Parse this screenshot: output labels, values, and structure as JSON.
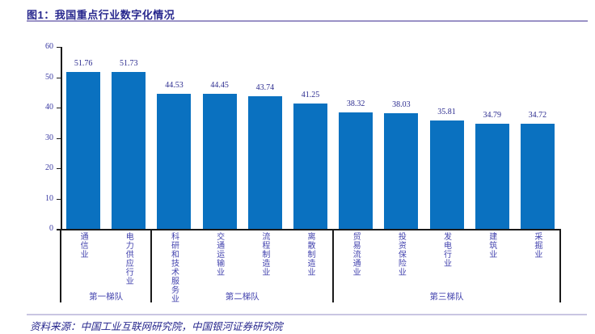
{
  "title": "图1：我国重点行业数字化情况",
  "source_note": "资料来源：中国工业互联网研究院，中国银河证券研究院",
  "colors": {
    "bar": "#0A71C0",
    "title_text": "#28288E",
    "y_tick_label": "#3838A2",
    "value_label": "#2B2B8F",
    "category_label": "#4343AE",
    "axis_line": "#1a1a1a",
    "title_rule": "#9A92C6",
    "source_rule": "#C9C6E2"
  },
  "chart_data": {
    "type": "bar",
    "title": "我国重点行业数字化情况",
    "categories": [
      "通信业",
      "电力供应行业",
      "科研和技术服务业",
      "交通运输业",
      "流程制造业",
      "离散制造业",
      "贸易流通业",
      "投资保险业",
      "发电行业",
      "建筑业",
      "采掘业"
    ],
    "values": [
      51.76,
      51.73,
      44.53,
      44.45,
      43.74,
      41.25,
      38.32,
      38.03,
      35.81,
      34.79,
      34.72
    ],
    "value_label_decimals": 2,
    "groups": [
      {
        "label": "第一梯队",
        "count": 2
      },
      {
        "label": "第二梯队",
        "count": 4
      },
      {
        "label": "第三梯队",
        "count": 5
      }
    ],
    "xlabel": "",
    "ylabel": "",
    "ylim": [
      0,
      60
    ],
    "yticks": [
      0,
      10,
      20,
      30,
      40,
      50,
      60
    ],
    "grid": false,
    "legend": false,
    "value_labels_shown": true
  }
}
